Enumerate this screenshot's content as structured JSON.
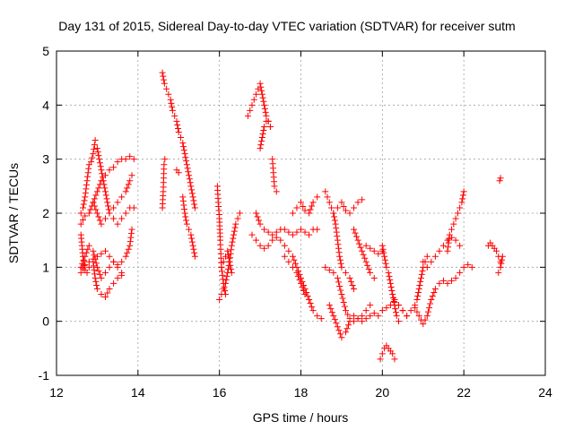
{
  "chart_data": {
    "type": "scatter",
    "title": "Day 131 of 2015, Sidereal Day-to-day VTEC variation (SDTVAR) for receiver sutm",
    "xlabel": "GPS time / hours",
    "ylabel": "SDTVAR / TECUs",
    "xlim": [
      12,
      24
    ],
    "ylim": [
      -1,
      5
    ],
    "x_ticks": [
      12,
      14,
      16,
      18,
      20,
      22,
      24
    ],
    "y_ticks": [
      -1,
      0,
      1,
      2,
      3,
      4,
      5
    ],
    "grid": true,
    "marker": "+",
    "color": "#ff0000",
    "series": [
      {
        "name": "SDTVAR",
        "segments": [
          {
            "x": [
              12.6,
              12.65,
              12.7,
              12.75,
              12.8,
              12.85,
              12.9,
              12.95
            ],
            "y": [
              2.0,
              2.1,
              2.3,
              2.6,
              2.9,
              2.95,
              3.1,
              3.35
            ]
          },
          {
            "x": [
              12.6,
              12.65,
              12.7,
              12.75,
              12.8,
              12.9,
              12.95,
              13.0,
              13.1,
              13.2,
              13.3,
              13.4,
              13.5,
              13.6
            ],
            "y": [
              1.6,
              1.2,
              0.95,
              0.9,
              1.0,
              1.1,
              0.8,
              0.6,
              0.5,
              0.45,
              0.6,
              0.7,
              0.8,
              0.85
            ]
          },
          {
            "x": [
              12.6,
              12.7,
              12.8,
              12.9,
              13.0,
              13.1,
              13.2,
              13.3,
              13.4,
              13.5,
              13.6
            ],
            "y": [
              1.0,
              1.2,
              1.4,
              1.3,
              1.0,
              0.8,
              0.9,
              1.0,
              1.1,
              1.0,
              0.9
            ]
          },
          {
            "x": [
              12.6,
              12.7,
              12.8,
              12.9,
              13.0,
              13.1,
              13.2,
              13.3,
              13.4,
              13.5,
              13.6,
              13.7,
              13.8,
              13.9
            ],
            "y": [
              1.8,
              1.95,
              2.0,
              2.2,
              2.4,
              2.6,
              2.7,
              2.8,
              2.85,
              2.95,
              3.0,
              3.0,
              3.05,
              3.0
            ]
          },
          {
            "x": [
              12.9,
              13.0,
              13.1,
              13.2,
              13.3,
              13.4,
              13.5,
              13.6,
              13.7,
              13.8,
              13.85
            ],
            "y": [
              2.2,
              2.0,
              1.8,
              1.9,
              2.0,
              2.1,
              2.2,
              2.3,
              2.4,
              2.6,
              2.7
            ]
          },
          {
            "x": [
              12.6,
              12.7,
              12.8,
              12.9,
              13.0,
              13.1,
              13.2,
              13.3,
              13.4,
              13.5,
              13.6,
              13.7,
              13.8,
              13.85
            ],
            "y": [
              0.9,
              1.05,
              1.1,
              1.15,
              1.2,
              1.25,
              1.3,
              1.2,
              1.1,
              1.05,
              1.1,
              1.2,
              1.4,
              1.7
            ]
          },
          {
            "x": [
              13.0,
              13.1,
              13.2,
              13.3,
              13.4,
              13.5,
              13.6,
              13.7,
              13.8,
              13.9
            ],
            "y": [
              3.2,
              2.8,
              2.4,
              2.0,
              1.9,
              1.8,
              1.9,
              2.0,
              2.1,
              2.1
            ]
          },
          {
            "x": [
              14.6,
              14.62,
              14.64,
              14.66
            ],
            "y": [
              2.1,
              2.4,
              2.9,
              3.0
            ]
          },
          {
            "x": [
              14.6,
              14.65,
              14.7,
              14.75,
              14.8,
              14.85,
              14.9,
              14.95,
              15.0,
              15.05,
              15.1,
              15.15,
              15.2,
              15.25,
              15.3,
              15.35,
              15.4
            ],
            "y": [
              4.6,
              4.4,
              4.3,
              4.2,
              4.1,
              3.9,
              3.8,
              3.7,
              3.5,
              3.4,
              3.3,
              3.1,
              2.9,
              2.7,
              2.5,
              2.3,
              2.1
            ]
          },
          {
            "x": [
              14.95,
              15.0
            ],
            "y": [
              2.8,
              2.75
            ]
          },
          {
            "x": [
              15.1,
              15.15,
              15.2,
              15.25,
              15.3,
              15.35,
              15.4
            ],
            "y": [
              2.3,
              2.0,
              1.8,
              1.7,
              1.6,
              1.4,
              1.2
            ]
          },
          {
            "x": [
              15.95,
              15.97,
              16.0,
              16.02,
              16.05,
              16.1,
              16.15
            ],
            "y": [
              2.5,
              2.2,
              1.9,
              1.5,
              1.0,
              0.7,
              0.5
            ]
          },
          {
            "x": [
              16.0,
              16.05,
              16.1,
              16.15,
              16.2,
              16.25,
              16.3,
              16.35,
              16.4,
              16.45,
              16.5
            ],
            "y": [
              0.4,
              0.5,
              0.6,
              0.7,
              0.9,
              1.1,
              1.4,
              1.6,
              1.8,
              1.9,
              2.0
            ]
          },
          {
            "x": [
              16.05,
              16.1,
              16.15,
              16.2,
              16.25,
              16.3
            ],
            "y": [
              1.0,
              1.1,
              1.2,
              1.3,
              1.1,
              0.9
            ]
          },
          {
            "x": [
              16.7,
              16.75,
              16.8,
              16.85,
              16.9,
              16.95,
              17.0,
              17.05,
              17.1,
              17.15,
              17.2,
              17.25
            ],
            "y": [
              3.8,
              3.9,
              4.0,
              4.1,
              4.2,
              4.3,
              4.4,
              4.2,
              4.0,
              3.8,
              3.7,
              3.6
            ]
          },
          {
            "x": [
              17.0,
              17.05,
              17.1,
              17.15,
              17.2,
              17.25
            ],
            "y": [
              3.2,
              3.4,
              3.6,
              3.7,
              3.7,
              3.6
            ]
          },
          {
            "x": [
              17.3,
              17.35,
              17.4
            ],
            "y": [
              3.0,
              2.5,
              2.4
            ]
          },
          {
            "x": [
              16.9,
              17.0,
              17.1,
              17.2,
              17.3,
              17.4,
              17.5,
              17.6,
              17.7,
              17.8,
              17.9,
              18.0,
              18.1,
              18.2,
              18.3,
              18.4
            ],
            "y": [
              2.0,
              1.8,
              1.7,
              1.65,
              1.6,
              1.65,
              1.7,
              1.7,
              1.65,
              1.6,
              1.65,
              1.7,
              1.65,
              1.6,
              1.7,
              1.7
            ]
          },
          {
            "x": [
              16.8,
              16.9,
              17.0,
              17.1,
              17.2,
              17.3,
              17.4,
              17.5,
              17.6,
              17.7,
              17.8,
              17.9,
              18.0,
              18.1,
              18.2,
              18.3,
              18.4,
              18.5
            ],
            "y": [
              1.6,
              1.5,
              1.4,
              1.35,
              1.4,
              1.5,
              1.55,
              1.5,
              1.4,
              1.3,
              1.2,
              1.0,
              0.8,
              0.6,
              0.4,
              0.2,
              0.1,
              0.05
            ]
          },
          {
            "x": [
              17.6,
              17.7,
              17.8,
              17.9,
              18.0,
              18.1,
              18.2
            ],
            "y": [
              1.2,
              1.1,
              1.0,
              0.9,
              0.7,
              0.5,
              0.4
            ]
          },
          {
            "x": [
              17.8,
              17.9,
              18.0,
              18.1,
              18.2,
              18.3,
              18.4
            ],
            "y": [
              2.0,
              2.1,
              2.2,
              2.05,
              2.0,
              2.2,
              2.3
            ]
          },
          {
            "x": [
              18.6,
              18.65,
              18.7,
              18.75,
              18.8,
              18.85,
              18.9,
              18.95,
              19.0,
              19.1,
              19.2,
              19.3
            ],
            "y": [
              2.4,
              2.3,
              2.2,
              2.1,
              2.0,
              1.8,
              1.5,
              1.2,
              1.0,
              0.9,
              0.8,
              0.6
            ]
          },
          {
            "x": [
              18.6,
              18.7,
              18.8,
              18.9,
              19.0,
              19.1,
              19.2,
              19.3,
              19.4,
              19.5,
              19.6,
              19.7
            ],
            "y": [
              1.0,
              0.95,
              0.9,
              0.8,
              0.5,
              0.2,
              0.05,
              0.0,
              0.05,
              0.1,
              0.2,
              0.3
            ]
          },
          {
            "x": [
              18.7,
              18.8,
              18.9,
              19.0,
              19.1,
              19.2,
              19.3,
              19.4,
              19.5,
              19.6,
              19.7,
              19.8,
              19.9,
              20.0,
              20.1,
              20.2,
              20.3,
              20.4,
              20.5,
              20.6
            ],
            "y": [
              0.3,
              0.1,
              -0.1,
              -0.3,
              -0.2,
              0.0,
              0.1,
              0.05,
              0.0,
              0.05,
              0.1,
              0.15,
              0.1,
              0.2,
              0.25,
              0.3,
              0.35,
              0.3,
              0.2,
              0.1
            ]
          },
          {
            "x": [
              18.8,
              18.9,
              19.0,
              19.1,
              19.2,
              19.3,
              19.4,
              19.5
            ],
            "y": [
              2.0,
              2.1,
              2.2,
              2.05,
              2.0,
              2.1,
              2.2,
              2.25
            ]
          },
          {
            "x": [
              19.3,
              19.4,
              19.5,
              19.6,
              19.7,
              19.8
            ],
            "y": [
              1.7,
              1.5,
              1.3,
              1.1,
              0.9,
              0.8
            ]
          },
          {
            "x": [
              19.6,
              19.7,
              19.8,
              19.9,
              20.0
            ],
            "y": [
              1.4,
              1.35,
              1.3,
              1.25,
              1.3
            ]
          },
          {
            "x": [
              20.0,
              20.05,
              20.1,
              20.15,
              20.2,
              20.25,
              20.3,
              20.35,
              20.4
            ],
            "y": [
              1.4,
              1.2,
              1.0,
              0.9,
              0.7,
              0.5,
              0.3,
              0.1,
              0.0
            ]
          },
          {
            "x": [
              19.95,
              20.0,
              20.05,
              20.1,
              20.15,
              20.2,
              20.25,
              20.3
            ],
            "y": [
              -0.7,
              -0.6,
              -0.5,
              -0.45,
              -0.5,
              -0.55,
              -0.6,
              -0.7
            ]
          },
          {
            "x": [
              20.3,
              20.4,
              20.5,
              20.6,
              20.7,
              20.8,
              20.9,
              21.0,
              21.1,
              21.2,
              21.3,
              21.4,
              21.5,
              21.6,
              21.7,
              21.8,
              21.9,
              22.0,
              22.1,
              22.2
            ],
            "y": [
              0.4,
              0.3,
              0.2,
              0.1,
              0.2,
              0.25,
              0.1,
              -0.05,
              0.1,
              0.4,
              0.6,
              0.7,
              0.75,
              0.7,
              0.75,
              0.8,
              0.9,
              1.0,
              1.05,
              1.0
            ]
          },
          {
            "x": [
              20.8,
              20.85,
              20.9,
              20.95,
              21.0,
              21.05,
              21.1
            ],
            "y": [
              0.3,
              0.4,
              0.6,
              0.8,
              1.0,
              1.1,
              1.2
            ]
          },
          {
            "x": [
              21.0,
              21.1,
              21.2,
              21.3,
              21.4,
              21.5,
              21.6,
              21.7,
              21.8,
              21.9
            ],
            "y": [
              1.1,
              1.0,
              1.1,
              1.2,
              1.3,
              1.4,
              1.5,
              1.55,
              1.5,
              1.4
            ]
          },
          {
            "x": [
              21.6,
              21.65,
              21.7,
              21.75,
              21.8,
              21.85,
              21.9,
              21.95,
              22.0
            ],
            "y": [
              1.3,
              1.6,
              1.7,
              1.8,
              1.9,
              2.0,
              2.1,
              2.2,
              2.4
            ]
          },
          {
            "x": [
              22.6,
              22.65,
              22.7,
              22.75,
              22.8,
              22.85,
              22.9
            ],
            "y": [
              1.4,
              1.45,
              1.4,
              1.35,
              1.3,
              1.2,
              1.1
            ]
          },
          {
            "x": [
              22.85,
              22.9,
              22.95
            ],
            "y": [
              0.9,
              1.0,
              1.2
            ]
          },
          {
            "x": [
              22.88,
              22.9
            ],
            "y": [
              2.6,
              2.65
            ]
          }
        ]
      }
    ]
  }
}
